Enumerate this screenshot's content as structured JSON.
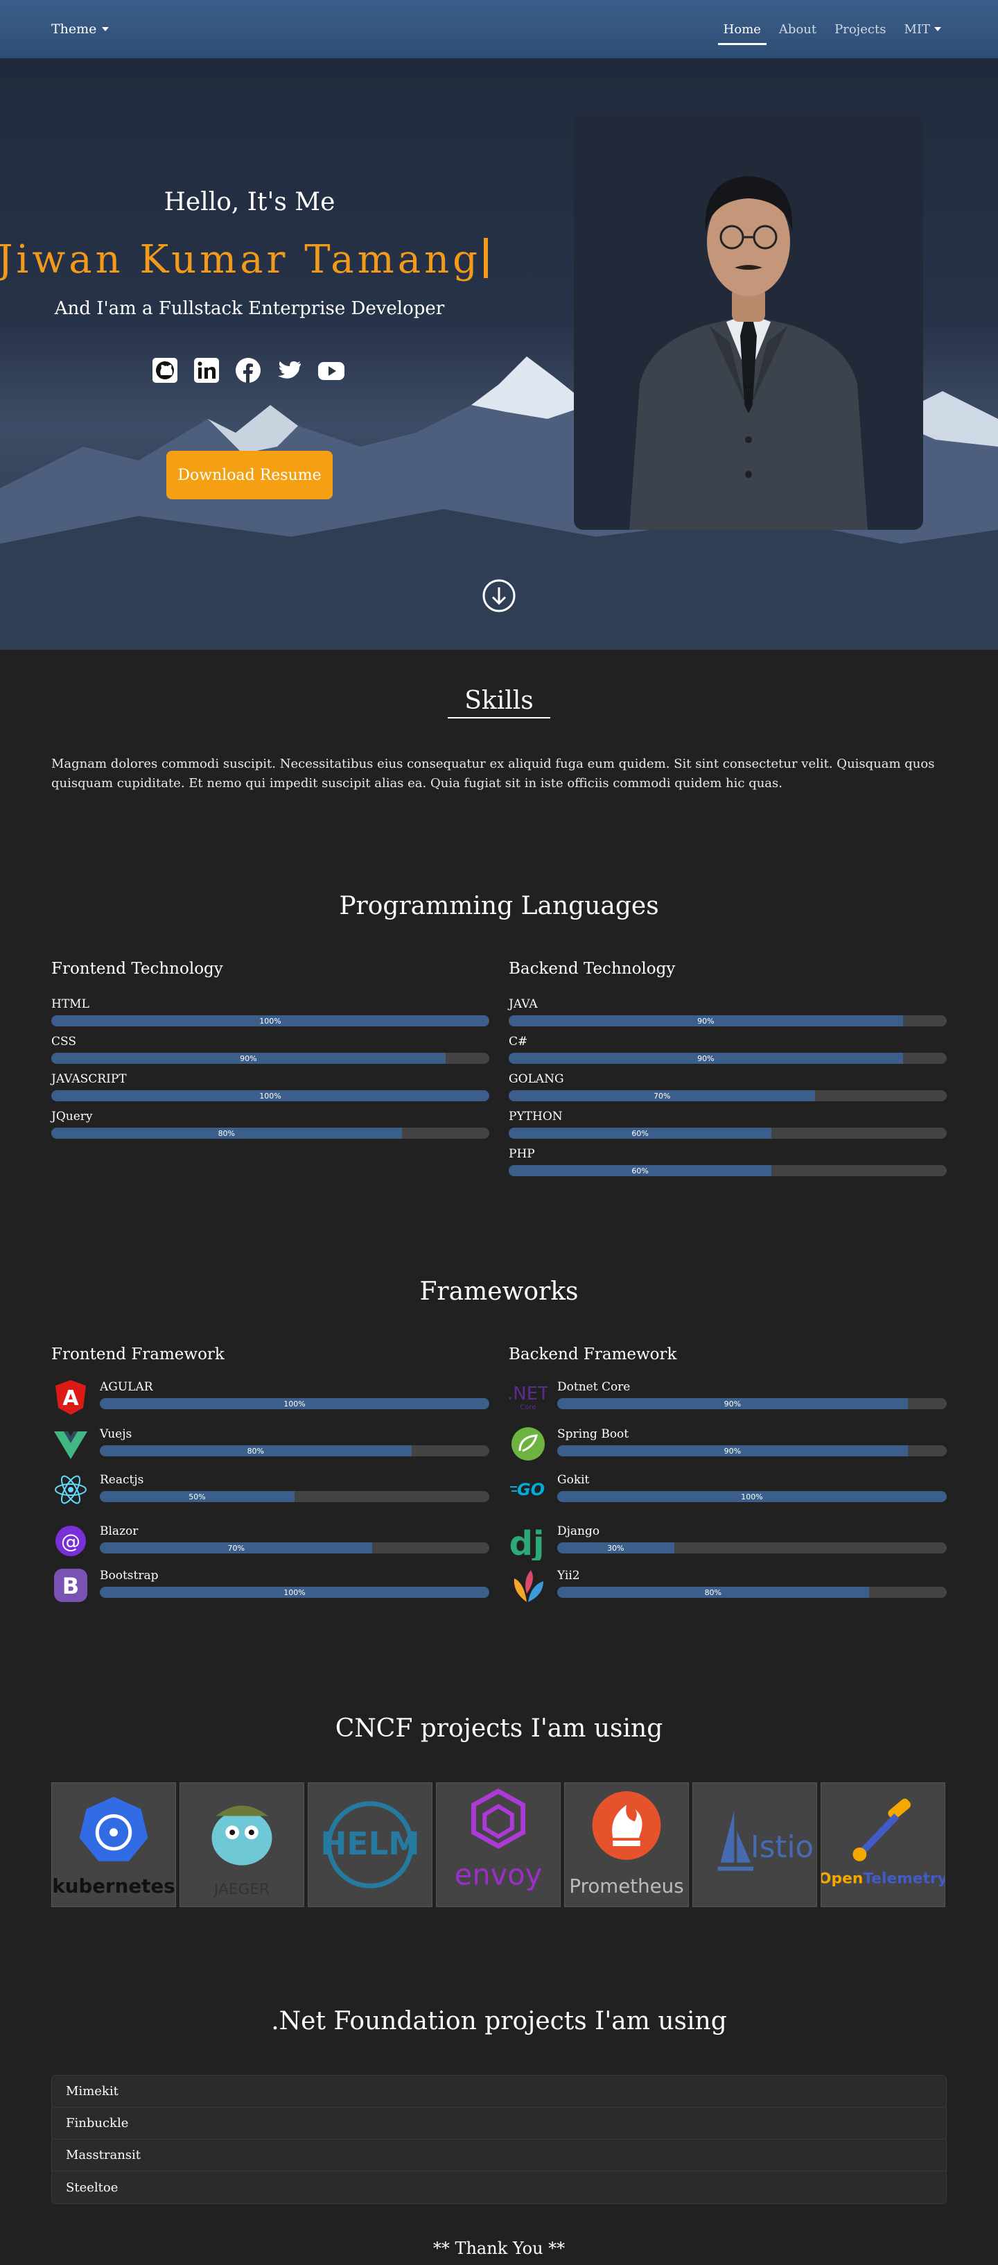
{
  "nav": {
    "theme_label": "Theme",
    "links": [
      {
        "label": "Home",
        "active": true
      },
      {
        "label": "About"
      },
      {
        "label": "Projects"
      },
      {
        "label": "MIT"
      }
    ]
  },
  "hero": {
    "greeting": "Hello, It's Me",
    "name": "Jiwan Kumar Tamang",
    "tagline": "And I'am a Fullstack Enterprise Developer",
    "socials": [
      "github-icon",
      "linkedin-icon",
      "facebook-icon",
      "twitter-icon",
      "youtube-icon"
    ],
    "resume_button": "Download Resume",
    "accent_color": "#f29a1a"
  },
  "skills": {
    "title": "Skills",
    "description": "Magnam dolores commodi suscipit. Necessitatibus eius consequatur ex aliquid fuga eum quidem. Sit sint consectetur velit. Quisquam quos quisquam cupiditate. Et nemo qui impedit suscipit alias ea. Quia fugiat sit in iste officiis commodi quidem hic quas."
  },
  "languages": {
    "title": "Programming Languages",
    "frontend": {
      "title": "Frontend Technology",
      "items": [
        {
          "name": "HTML",
          "percent": 100,
          "label": "100%"
        },
        {
          "name": "CSS",
          "percent": 90,
          "label": "90%"
        },
        {
          "name": "JAVASCRIPT",
          "percent": 100,
          "label": "100%"
        },
        {
          "name": "JQuery",
          "percent": 80,
          "label": "80%"
        }
      ]
    },
    "backend": {
      "title": "Backend Technology",
      "items": [
        {
          "name": "JAVA",
          "percent": 90,
          "label": "90%"
        },
        {
          "name": "C#",
          "percent": 90,
          "label": "90%"
        },
        {
          "name": "GOLANG",
          "percent": 70,
          "label": "70%"
        },
        {
          "name": "PYTHON",
          "percent": 60,
          "label": "60%"
        },
        {
          "name": "PHP",
          "percent": 60,
          "label": "60%"
        }
      ]
    }
  },
  "frameworks": {
    "title": "Frameworks",
    "frontend": {
      "title": "Frontend Framework",
      "items": [
        {
          "name": "AGULAR",
          "percent": 100,
          "label": "100%",
          "icon": "angular-icon",
          "color": "#dd1b16"
        },
        {
          "name": "Vuejs",
          "percent": 80,
          "label": "80%",
          "icon": "vue-icon",
          "color": "#41b883"
        },
        {
          "name": "Reactjs",
          "percent": 50,
          "label": "50%",
          "icon": "react-icon",
          "color": "#61dafb"
        },
        {
          "name": "Blazor",
          "percent": 70,
          "label": "70%",
          "icon": "blazor-icon",
          "color": "#7b2fd6"
        },
        {
          "name": "Bootstrap",
          "percent": 100,
          "label": "100%",
          "icon": "bootstrap-icon",
          "color": "#7952b3"
        }
      ]
    },
    "backend": {
      "title": "Backend Framework",
      "items": [
        {
          "name": "Dotnet Core",
          "percent": 90,
          "label": "90%",
          "icon": "dotnet-icon",
          "color": "#5c2d91"
        },
        {
          "name": "Spring Boot",
          "percent": 90,
          "label": "90%",
          "icon": "spring-icon",
          "color": "#6db33f"
        },
        {
          "name": "Gokit",
          "percent": 100,
          "label": "100%",
          "icon": "go-icon",
          "color": "#00add8"
        },
        {
          "name": "Django",
          "percent": 30,
          "label": "30%",
          "icon": "django-icon",
          "color": "#2ba977"
        },
        {
          "name": "Yii2",
          "percent": 80,
          "label": "80%",
          "icon": "yii-icon",
          "color": "#f4a62a"
        }
      ]
    }
  },
  "cncf": {
    "title": "CNCF projects I'am using",
    "projects": [
      "kubernetes",
      "JAEGER",
      "HELM",
      "envoy",
      "Prometheus",
      "Istio",
      "OpenTelemetry"
    ]
  },
  "dotnet_foundation": {
    "title": ".Net Foundation projects I'am using",
    "items": [
      "Mimekit",
      "Finbuckle",
      "Masstransit",
      "Steeltoe"
    ]
  },
  "footer": {
    "thanks": "** Thank You **"
  }
}
